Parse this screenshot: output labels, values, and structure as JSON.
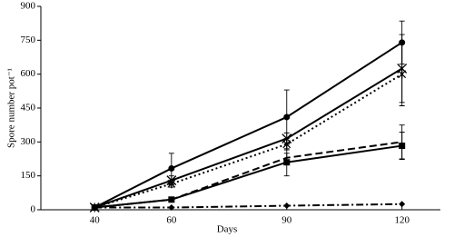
{
  "chart_data": {
    "type": "line",
    "x_label": "Days",
    "y_label": "Spore number pot⁻¹",
    "x": [
      40,
      60,
      90,
      120
    ],
    "xlim": [
      26,
      130
    ],
    "xticks": [
      40,
      60,
      90,
      120
    ],
    "ylim": [
      0,
      900
    ],
    "yticks": [
      0,
      150,
      300,
      450,
      600,
      750,
      900
    ],
    "series": [
      {
        "color": "#000000",
        "dash": "solid",
        "marker": "circle",
        "values": [
          10,
          183,
          410,
          740
        ],
        "errors": [
          null,
          67,
          120,
          95
        ]
      },
      {
        "color": "#000000",
        "dash": "solid",
        "marker": "x",
        "values": [
          10,
          130,
          315,
          625
        ],
        "errors": [
          null,
          20,
          25,
          150
        ]
      },
      {
        "color": "#000000",
        "dash": "dot",
        "marker": "star",
        "values": [
          10,
          115,
          290,
          600
        ],
        "errors": [
          null,
          15,
          25,
          140
        ]
      },
      {
        "color": "#000000",
        "dash": "dash",
        "marker": "none",
        "values": [
          10,
          45,
          230,
          300
        ],
        "errors": [
          null,
          null,
          20,
          75
        ]
      },
      {
        "color": "#000000",
        "dash": "solid",
        "marker": "square",
        "values": [
          10,
          45,
          210,
          283
        ],
        "errors": [
          null,
          null,
          60,
          60
        ]
      },
      {
        "color": "#000000",
        "dash": "dashdot",
        "marker": "diamond",
        "values": [
          10,
          10,
          18,
          25
        ],
        "errors": [
          null,
          null,
          null,
          null
        ]
      }
    ]
  }
}
